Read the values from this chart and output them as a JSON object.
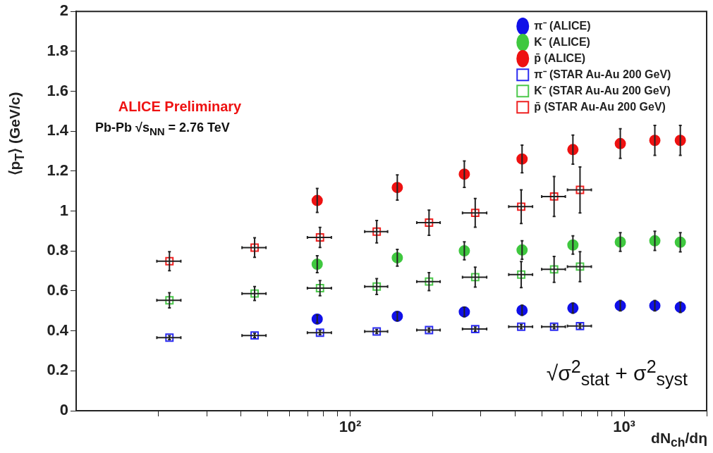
{
  "chart_data": {
    "type": "scatter",
    "xlabel": "dN$_{ch}$/dη",
    "ylabel": "⟨p$_{T}$⟩ (GeV/c)",
    "annotations": [
      "ALICE Preliminary",
      "Pb-Pb √s$_{NN}$ = 2.76 TeV",
      "√σ$^{2}$$_{stat}$ + σ$^{2}$$_{syst}$"
    ],
    "log": "x",
    "xlim": [
      10,
      2000
    ],
    "ylim": [
      0,
      2
    ],
    "xticks": [
      {
        "value": 20,
        "label": null
      },
      {
        "value": 30,
        "label": null
      },
      {
        "value": 40,
        "label": null
      },
      {
        "value": 50,
        "label": null
      },
      {
        "value": 60,
        "label": null
      },
      {
        "value": 70,
        "label": null
      },
      {
        "value": 80,
        "label": null
      },
      {
        "value": 90,
        "label": null
      },
      {
        "value": 100,
        "label": "10²"
      },
      {
        "value": 200,
        "label": null
      },
      {
        "value": 300,
        "label": null
      },
      {
        "value": 400,
        "label": null
      },
      {
        "value": 500,
        "label": null
      },
      {
        "value": 600,
        "label": null
      },
      {
        "value": 700,
        "label": null
      },
      {
        "value": 800,
        "label": null
      },
      {
        "value": 900,
        "label": null
      },
      {
        "value": 1000,
        "label": "10³"
      },
      {
        "value": 2000,
        "label": null
      }
    ],
    "yticks": [
      0,
      0.2,
      0.4,
      0.6,
      0.8,
      1,
      1.2,
      1.4,
      1.6,
      1.8,
      2
    ],
    "grid": false,
    "legend": "top right",
    "series": [
      {
        "name": "π⁻ (ALICE)",
        "color": "#1010e8",
        "marker": "circle",
        "x": [
          75.8,
          148.6,
          261,
          424,
          650,
          968,
          1294,
          1603
        ],
        "values": [
          0.459,
          0.473,
          0.495,
          0.503,
          0.514,
          0.526,
          0.526,
          0.518
        ],
        "errors": [
          0.02,
          0.022,
          0.024,
          0.025,
          0.025,
          0.026,
          0.026,
          0.026
        ]
      },
      {
        "name": "K⁻ (ALICE)",
        "color": "#3fc83f",
        "marker": "circle",
        "x": [
          75.8,
          148.6,
          261,
          424,
          650,
          968,
          1294,
          1603
        ],
        "values": [
          0.734,
          0.766,
          0.801,
          0.805,
          0.83,
          0.845,
          0.851,
          0.844
        ],
        "errors": [
          0.042,
          0.042,
          0.045,
          0.046,
          0.046,
          0.047,
          0.048,
          0.048
        ]
      },
      {
        "name": "p̄ (ALICE)",
        "color": "#ee1111",
        "marker": "circle",
        "x": [
          75.8,
          148.6,
          261,
          424,
          650,
          968,
          1294,
          1603
        ],
        "values": [
          1.053,
          1.118,
          1.185,
          1.261,
          1.308,
          1.338,
          1.354,
          1.354
        ],
        "errors": [
          0.06,
          0.063,
          0.066,
          0.069,
          0.073,
          0.074,
          0.075,
          0.075
        ]
      },
      {
        "name": "π⁻ (STAR Au-Au 200 GeV)",
        "color": "#2b2bf0",
        "marker": "square",
        "x": [
          21.9,
          44.8,
          77.6,
          125,
          194,
          286,
          421,
          555,
          690
        ],
        "values": [
          0.366,
          0.377,
          0.391,
          0.397,
          0.404,
          0.409,
          0.421,
          0.421,
          0.424
        ],
        "errors": [
          0.01,
          0.01,
          0.01,
          0.01,
          0.01,
          0.01,
          0.01,
          0.01,
          0.01
        ],
        "xerrors": [
          2.2,
          4.5,
          7.8,
          12,
          19,
          29,
          42,
          55,
          69
        ]
      },
      {
        "name": "K⁻ (STAR Au-Au 200 GeV)",
        "color": "#4cc84c",
        "marker": "square",
        "x": [
          21.9,
          44.8,
          77.6,
          125,
          194,
          286,
          421,
          555,
          690
        ],
        "values": [
          0.553,
          0.587,
          0.614,
          0.622,
          0.647,
          0.669,
          0.682,
          0.708,
          0.722
        ],
        "errors": [
          0.038,
          0.035,
          0.038,
          0.04,
          0.045,
          0.05,
          0.065,
          0.065,
          0.075
        ],
        "xerrors": [
          2.2,
          4.5,
          7.8,
          12,
          19,
          29,
          42,
          55,
          69
        ]
      },
      {
        "name": "p̄ (STAR Au-Au 200 GeV)",
        "color": "#ee2222",
        "marker": "square",
        "x": [
          21.9,
          44.8,
          77.6,
          125,
          194,
          286,
          421,
          555,
          690
        ],
        "values": [
          0.749,
          0.817,
          0.868,
          0.897,
          0.942,
          0.991,
          1.022,
          1.073,
          1.106
        ],
        "errors": [
          0.048,
          0.049,
          0.05,
          0.056,
          0.063,
          0.072,
          0.084,
          0.1,
          0.115
        ],
        "xerrors": [
          2.2,
          4.5,
          7.8,
          12,
          19,
          29,
          42,
          55,
          69
        ]
      }
    ]
  }
}
